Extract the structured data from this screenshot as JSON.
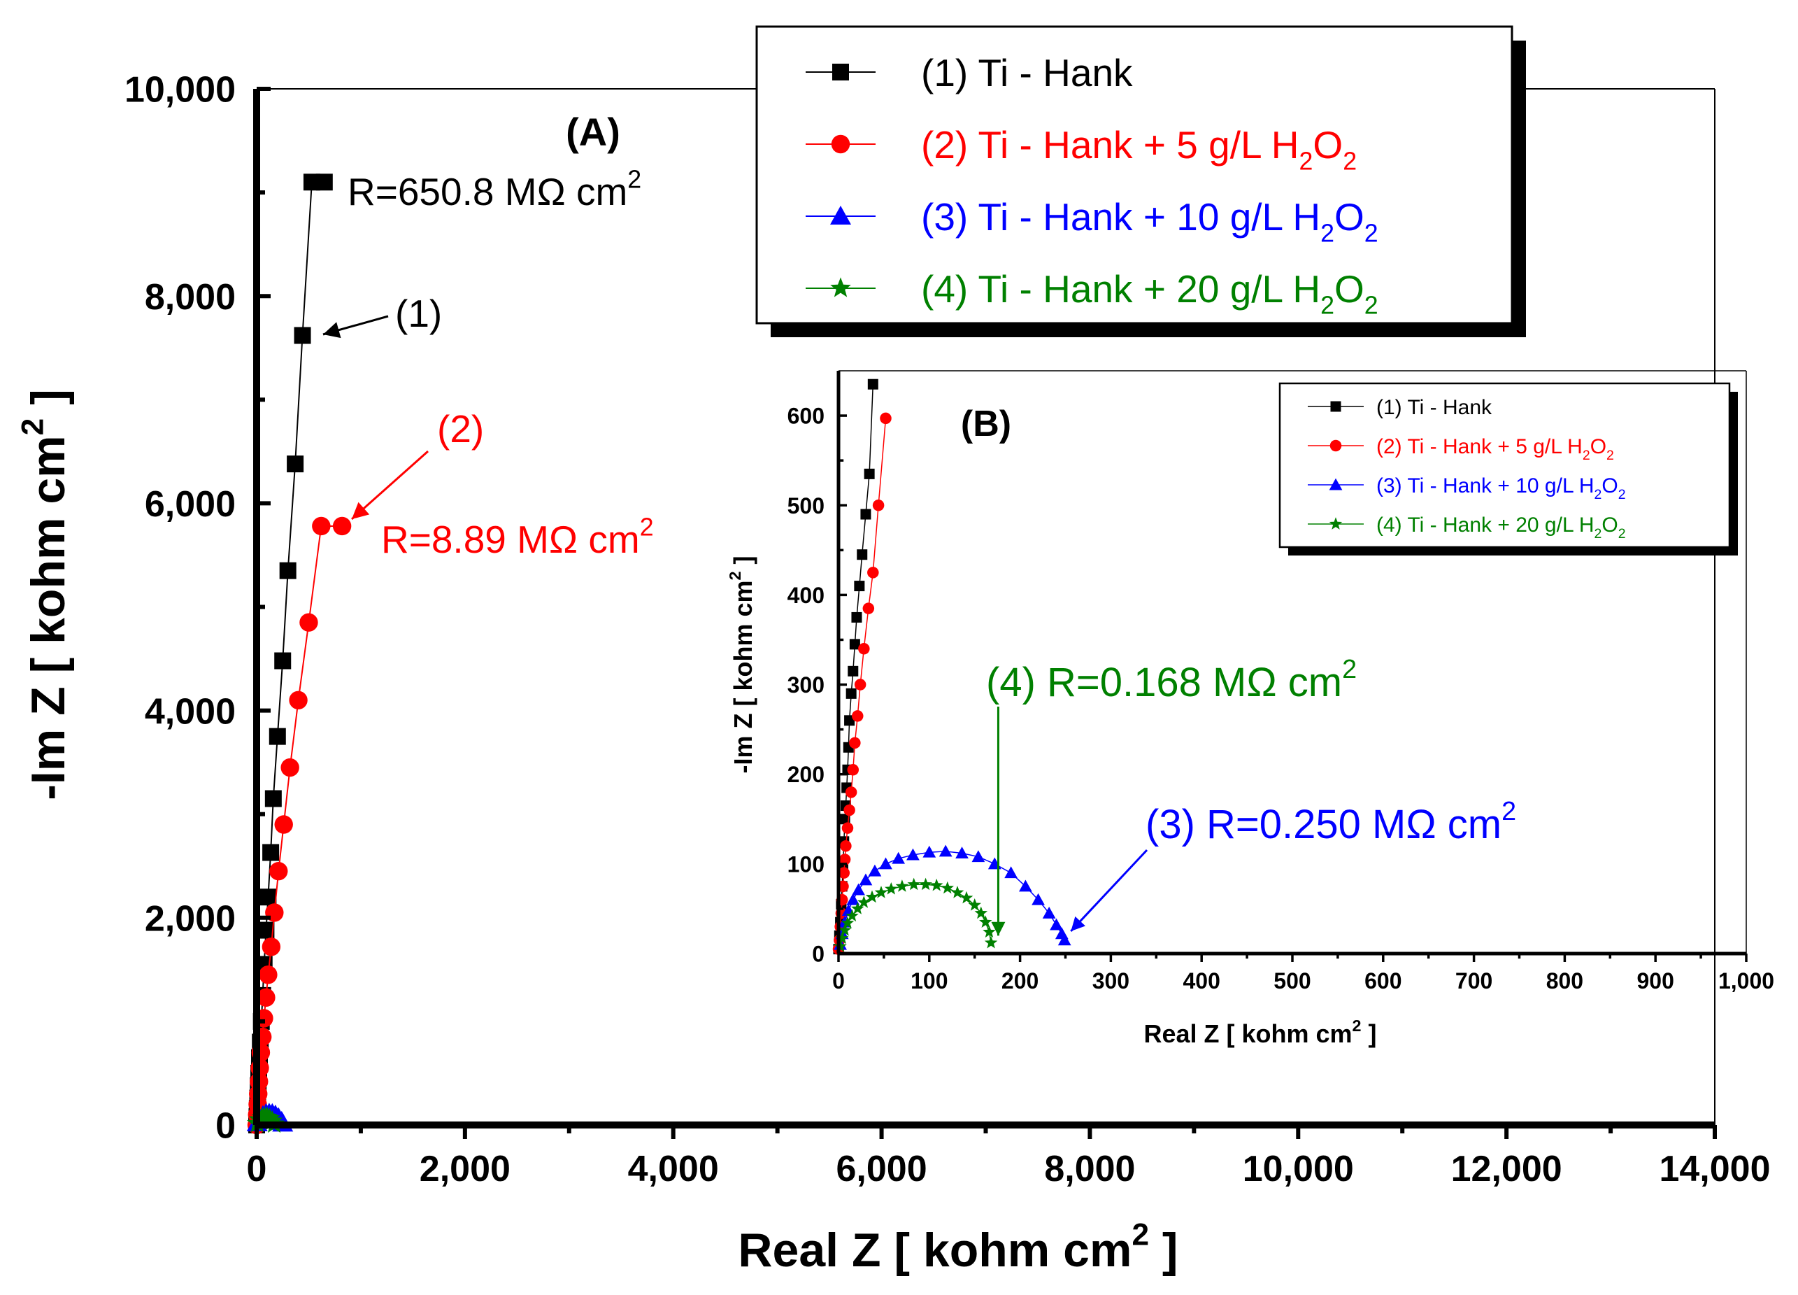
{
  "colors": {
    "s1": "#000000",
    "s2": "#ff0000",
    "s3": "#0000ff",
    "s4": "#008000"
  },
  "chart_data": [
    {
      "id": "main",
      "type": "scatter",
      "panel_label": "(A)",
      "xlabel_main": "Real Z [ kohm cm",
      "xlabel_sup": "2",
      "xlabel_end": " ]",
      "ylabel_main": "-Im Z [ kohm cm",
      "ylabel_sup": "2",
      "ylabel_end": " ]",
      "xlim": [
        0,
        14000
      ],
      "ylim": [
        0,
        10000
      ],
      "x_ticks": [
        0,
        2000,
        4000,
        6000,
        8000,
        10000,
        12000,
        14000
      ],
      "x_tick_labels": [
        "0",
        "2,000",
        "4,000",
        "6,000",
        "8,000",
        "10,000",
        "12,000",
        "14,000"
      ],
      "y_ticks": [
        0,
        2000,
        4000,
        6000,
        8000,
        10000
      ],
      "y_tick_labels": [
        "0",
        "2,000",
        "4,000",
        "6,000",
        "8,000",
        "10,000"
      ],
      "legend": [
        {
          "text": "(1) Ti - Hank",
          "sub": null,
          "color": "#000000",
          "marker": "square"
        },
        {
          "text": "(2) Ti - Hank + 5 g/L H",
          "sub": "2",
          "text2": "O",
          "sub2": "2",
          "color": "#ff0000",
          "marker": "circle"
        },
        {
          "text": "(3) Ti - Hank + 10 g/L H",
          "sub": "2",
          "text2": "O",
          "sub2": "2",
          "color": "#0000ff",
          "marker": "triangle"
        },
        {
          "text": "(4) Ti - Hank + 20 g/L H",
          "sub": "2",
          "text2": "O",
          "sub2": "2",
          "color": "#008000",
          "marker": "star"
        }
      ],
      "series": [
        {
          "name": "(1) Ti - Hank",
          "color": "#000000",
          "marker": "square",
          "x": [
            0,
            3,
            6,
            10,
            15,
            20,
            27,
            35,
            45,
            58,
            72,
            90,
            110,
            135,
            160,
            200,
            250,
            300,
            370,
            440,
            530,
            650
          ],
          "y": [
            0,
            80,
            160,
            260,
            380,
            500,
            650,
            800,
            1000,
            1250,
            1550,
            1880,
            2200,
            2630,
            3150,
            3750,
            4480,
            5350,
            6380,
            7620,
            9100,
            9100
          ]
        },
        {
          "name": "(2) Ti - Hank + 5 g/L H2O2",
          "color": "#ff0000",
          "marker": "circle",
          "x": [
            0,
            5,
            10,
            15,
            22,
            30,
            40,
            55,
            70,
            90,
            110,
            140,
            170,
            210,
            260,
            320,
            400,
            500,
            620,
            820
          ],
          "y": [
            0,
            100,
            200,
            300,
            420,
            550,
            700,
            850,
            1030,
            1230,
            1450,
            1720,
            2050,
            2450,
            2900,
            3450,
            4100,
            4850,
            5780,
            5780
          ]
        },
        {
          "name": "(3) Ti - Hank + 10 g/L H2O2",
          "color": "#0000ff",
          "marker": "triangle",
          "x": [
            5,
            30,
            60,
            90,
            120,
            150,
            180,
            210,
            240,
            250
          ],
          "y": [
            20,
            60,
            90,
            110,
            113,
            110,
            95,
            70,
            35,
            18
          ]
        },
        {
          "name": "(4) Ti - Hank + 20 g/L H2O2",
          "color": "#008000",
          "marker": "star",
          "x": [
            5,
            25,
            50,
            75,
            100,
            125,
            150,
            168
          ],
          "y": [
            15,
            50,
            70,
            77,
            75,
            62,
            38,
            10
          ]
        }
      ],
      "annotations": [
        {
          "id": "a1",
          "text": "R=650.8 MΩ cm",
          "sup": "2",
          "color": "#000000"
        },
        {
          "id": "a2",
          "text": "(1)",
          "sup": null,
          "color": "#000000"
        },
        {
          "id": "a3",
          "text": "(2)",
          "sup": null,
          "color": "#ff0000"
        },
        {
          "id": "a4",
          "text": "R=8.89 MΩ cm",
          "sup": "2",
          "color": "#ff0000"
        }
      ]
    },
    {
      "id": "inset",
      "type": "scatter",
      "panel_label": "(B)",
      "xlabel_main": "Real Z [ kohm cm",
      "xlabel_sup": "2",
      "xlabel_end": " ]",
      "ylabel_main": "-Im Z [ kohm cm",
      "ylabel_sup": "2",
      "ylabel_end": " ]",
      "xlim": [
        0,
        1000
      ],
      "ylim": [
        0,
        650
      ],
      "x_ticks": [
        0,
        100,
        200,
        300,
        400,
        500,
        600,
        700,
        800,
        900,
        1000
      ],
      "x_tick_labels": [
        "0",
        "100",
        "200",
        "300",
        "400",
        "500",
        "600",
        "700",
        "800",
        "900",
        "1,000"
      ],
      "y_ticks": [
        0,
        100,
        200,
        300,
        400,
        500,
        600
      ],
      "y_tick_labels": [
        "0",
        "100",
        "200",
        "300",
        "400",
        "500",
        "600"
      ],
      "legend": [
        {
          "text": "(1) Ti - Hank",
          "sub": null,
          "color": "#000000",
          "marker": "square"
        },
        {
          "text": "(2) Ti - Hank + 5 g/L H",
          "sub": "2",
          "text2": "O",
          "sub2": "2",
          "color": "#ff0000",
          "marker": "circle"
        },
        {
          "text": "(3) Ti - Hank + 10 g/L H",
          "sub": "2",
          "text2": "O",
          "sub2": "2",
          "color": "#0000ff",
          "marker": "triangle"
        },
        {
          "text": "(4) Ti - Hank + 20 g/L H",
          "sub": "2",
          "text2": "O",
          "sub2": "2",
          "color": "#008000",
          "marker": "star"
        }
      ],
      "series": [
        {
          "name": "(1) Ti - Hank",
          "color": "#000000",
          "marker": "square",
          "x": [
            0,
            1,
            2,
            3,
            4,
            5,
            6,
            7,
            8,
            9,
            10,
            11,
            12,
            14,
            16,
            18,
            20,
            23,
            26,
            30,
            34,
            38
          ],
          "y": [
            5,
            20,
            35,
            55,
            75,
            100,
            125,
            150,
            165,
            185,
            205,
            230,
            260,
            290,
            315,
            345,
            375,
            410,
            445,
            490,
            535,
            635
          ]
        },
        {
          "name": "(2) Ti - Hank + 5 g/L H2O2",
          "color": "#ff0000",
          "marker": "circle",
          "x": [
            0,
            1,
            2,
            3,
            4,
            5,
            6,
            7,
            8,
            10,
            12,
            14,
            16,
            18,
            21,
            24,
            28,
            33,
            38,
            44,
            52
          ],
          "y": [
            5,
            15,
            30,
            45,
            60,
            75,
            90,
            105,
            120,
            140,
            160,
            180,
            205,
            235,
            265,
            300,
            340,
            385,
            425,
            500,
            597
          ]
        },
        {
          "name": "(3) Ti - Hank + 10 g/L H2O2",
          "color": "#0000ff",
          "marker": "triangle",
          "x": [
            2,
            4,
            7,
            11,
            16,
            22,
            30,
            40,
            52,
            66,
            82,
            100,
            118,
            136,
            154,
            172,
            190,
            206,
            220,
            232,
            240,
            246,
            249
          ],
          "y": [
            10,
            22,
            35,
            48,
            60,
            71,
            82,
            92,
            100,
            106,
            110,
            113,
            114,
            112,
            108,
            100,
            90,
            75,
            60,
            45,
            32,
            22,
            15
          ]
        },
        {
          "name": "(4) Ti - Hank + 20 g/L H2O2",
          "color": "#008000",
          "marker": "star",
          "x": [
            2,
            4,
            7,
            10,
            15,
            21,
            28,
            37,
            47,
            58,
            70,
            83,
            96,
            108,
            120,
            131,
            141,
            150,
            157,
            162,
            166,
            168
          ],
          "y": [
            8,
            17,
            26,
            34,
            42,
            50,
            57,
            63,
            68,
            72,
            75,
            77,
            77,
            76,
            73,
            68,
            62,
            54,
            45,
            35,
            24,
            12
          ]
        }
      ],
      "annotations": [
        {
          "id": "b4",
          "text": "(4) R=0.168 MΩ cm",
          "sup": "2",
          "color": "#008000"
        },
        {
          "id": "b3",
          "text": "(3) R=0.250 MΩ cm",
          "sup": "2",
          "color": "#0000ff"
        }
      ]
    }
  ]
}
